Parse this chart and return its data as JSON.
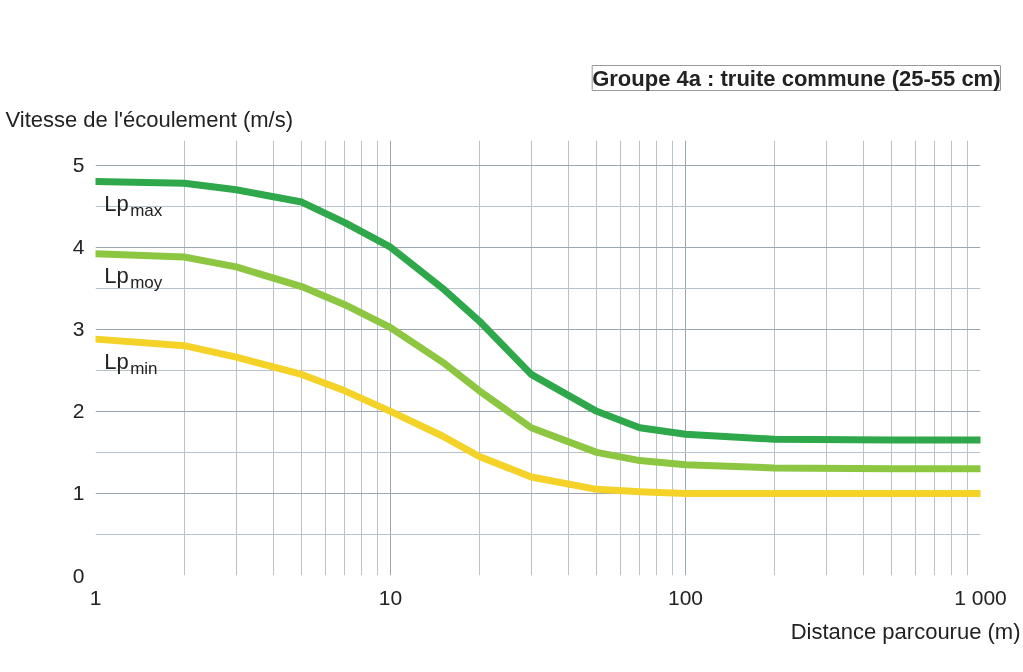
{
  "chart_data": {
    "type": "line",
    "title": "Groupe 4a : truite commune (25-55 cm)",
    "xlabel": "Distance parcourue (m)",
    "ylabel": "Vitesse de l'écoulement (m/s)",
    "log": "x",
    "grid": true,
    "xlim": [
      1,
      1000
    ],
    "ylim": [
      0,
      5.3
    ],
    "xticks": [
      1,
      10,
      100,
      {
        "value": 1000,
        "label": "1 000"
      }
    ],
    "yticks": [
      0,
      1,
      2,
      3,
      4,
      5
    ],
    "series": [
      {
        "name": "Lp$_{max}$",
        "color": "#2ea84a",
        "x": [
          1,
          2,
          3,
          5,
          7,
          10,
          15,
          20,
          30,
          50,
          70,
          100,
          200,
          500,
          1000
        ],
        "values": [
          4.8,
          4.78,
          4.7,
          4.55,
          4.3,
          4.0,
          3.5,
          3.1,
          2.45,
          2.0,
          1.8,
          1.72,
          1.66,
          1.65,
          1.65
        ]
      },
      {
        "name": "Lp$_{moy}$",
        "color": "#8dc641",
        "x": [
          1,
          2,
          3,
          5,
          7,
          10,
          15,
          20,
          30,
          50,
          70,
          100,
          200,
          500,
          1000
        ],
        "values": [
          3.92,
          3.88,
          3.76,
          3.52,
          3.3,
          3.02,
          2.6,
          2.25,
          1.8,
          1.5,
          1.4,
          1.35,
          1.31,
          1.3,
          1.3
        ]
      },
      {
        "name": "Lp$_{min}$",
        "color": "#f4d228",
        "x": [
          1,
          2,
          3,
          5,
          7,
          10,
          15,
          20,
          30,
          50,
          70,
          100,
          200,
          500,
          1000
        ],
        "values": [
          2.88,
          2.8,
          2.66,
          2.45,
          2.25,
          2.0,
          1.7,
          1.45,
          1.2,
          1.05,
          1.02,
          1.0,
          1.0,
          1.0,
          1.0
        ]
      }
    ]
  }
}
